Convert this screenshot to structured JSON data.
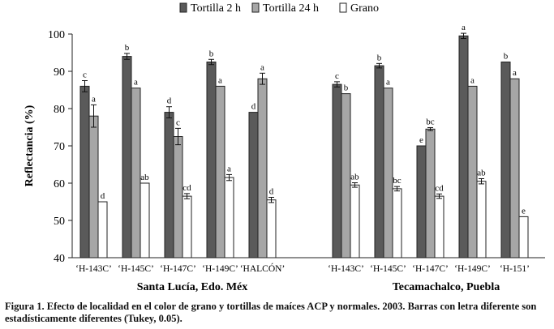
{
  "caption": "Figura 1. Efecto de localidad en el color de grano y tortillas de maíces ACP y normales. 2003. Barras con letra diferente son estadísticamente diferentes (Tukey, 0.05).",
  "chart_data": {
    "type": "bar",
    "ylabel": "Reflectancia (%)",
    "ylim": [
      40,
      100
    ],
    "yticks": [
      40,
      50,
      60,
      70,
      80,
      90,
      100
    ],
    "legend_position": "top-center",
    "series": [
      {
        "name": "Tortilla 2 h",
        "color": "#5a5a5a"
      },
      {
        "name": "Tortilla 24 h",
        "color": "#a6a6a6"
      },
      {
        "name": "Grano",
        "color": "#ffffff"
      }
    ],
    "groups": [
      {
        "location": "Santa Lucía, Edo. Méx",
        "hybrids": [
          {
            "label": "‘H-143C’",
            "values": [
              86,
              78,
              55
            ],
            "errors": [
              1.5,
              3,
              0
            ],
            "letters": [
              "c",
              "a",
              "d"
            ]
          },
          {
            "label": "‘H-145C’",
            "values": [
              94,
              85.5,
              60
            ],
            "errors": [
              0.8,
              0,
              0
            ],
            "letters": [
              "b",
              "a",
              "ab"
            ]
          },
          {
            "label": "‘H-147C’",
            "values": [
              79,
              72.5,
              56.5
            ],
            "errors": [
              1.5,
              2.2,
              0.7
            ],
            "letters": [
              "d",
              "c",
              "cd"
            ]
          },
          {
            "label": "‘H-149C’",
            "values": [
              92.5,
              86,
              61.5
            ],
            "errors": [
              0.7,
              0,
              0.8
            ],
            "letters": [
              "b",
              "a",
              "a"
            ]
          },
          {
            "label": "‘HALCÓN’",
            "values": [
              79,
              88,
              55.5
            ],
            "errors": [
              0,
              1.5,
              0.7
            ],
            "letters": [
              "d",
              "a",
              "d"
            ]
          }
        ]
      },
      {
        "location": "Tecamachalco, Puebla",
        "hybrids": [
          {
            "label": "‘H-143C’",
            "values": [
              86.5,
              84,
              59.5
            ],
            "errors": [
              0.7,
              0,
              0.6
            ],
            "letters": [
              "c",
              "b",
              "ab"
            ]
          },
          {
            "label": "‘H-145C’",
            "values": [
              91.5,
              85.5,
              58.5
            ],
            "errors": [
              0.6,
              0,
              0.6
            ],
            "letters": [
              "b",
              "a",
              "bc"
            ]
          },
          {
            "label": "‘H-147C’",
            "values": [
              70,
              74.5,
              56.5
            ],
            "errors": [
              0,
              0.4,
              0.6
            ],
            "letters": [
              "e",
              "bc",
              "cd"
            ]
          },
          {
            "label": "‘H-149C’",
            "values": [
              99.5,
              86,
              60.5
            ],
            "errors": [
              0.7,
              0,
              0.7
            ],
            "letters": [
              "a",
              "a",
              "ab"
            ]
          },
          {
            "label": "‘H-151’",
            "values": [
              92.5,
              88,
              51
            ],
            "errors": [
              0,
              0,
              0
            ],
            "letters": [
              "b",
              "a",
              "e"
            ]
          }
        ]
      }
    ]
  }
}
